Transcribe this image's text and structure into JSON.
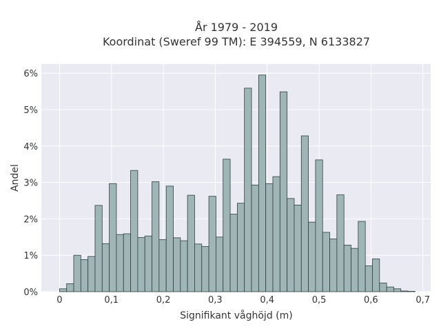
{
  "chart_data": {
    "type": "bar",
    "title": "År 1979 - 2019",
    "subtitle": "Koordinat (Sweref 99 TM): E 394559, N 6133827",
    "xlabel": "Signifikant våghöjd (m)",
    "ylabel": "Andel",
    "xlim": [
      -0.035,
      0.715
    ],
    "ylim": [
      0,
      6.25
    ],
    "x_ticks": [
      0,
      0.1,
      0.2,
      0.3,
      0.4,
      0.5,
      0.6,
      0.7
    ],
    "x_tick_labels": [
      "0",
      "0,1",
      "0,2",
      "0,3",
      "0,4",
      "0,5",
      "0,6",
      "0,7"
    ],
    "y_ticks": [
      0,
      1,
      2,
      3,
      4,
      5,
      6
    ],
    "y_tick_labels": [
      "0%",
      "1%",
      "2%",
      "3%",
      "4%",
      "5%",
      "6%"
    ],
    "grid": true,
    "bin_width": 0.0137,
    "bin_start": 0,
    "values": [
      0.08,
      0.22,
      1.0,
      0.88,
      0.97,
      2.37,
      1.32,
      2.97,
      1.57,
      1.59,
      3.33,
      1.49,
      1.53,
      3.02,
      1.43,
      2.9,
      1.48,
      1.4,
      2.65,
      1.31,
      1.24,
      2.62,
      1.5,
      3.64,
      2.13,
      2.43,
      5.59,
      2.93,
      5.95,
      2.97,
      3.16,
      5.49,
      2.56,
      2.38,
      4.28,
      1.91,
      3.62,
      1.63,
      1.45,
      2.66,
      1.28,
      1.19,
      1.93,
      0.71,
      0.9,
      0.24,
      0.13,
      0.08,
      0.02,
      0.01
    ],
    "colors": {
      "bar_fill": "#a0b6b6",
      "bar_edge": "#2f3d3d",
      "plot_bg": "#eaeaf2",
      "grid": "#ffffff"
    }
  }
}
